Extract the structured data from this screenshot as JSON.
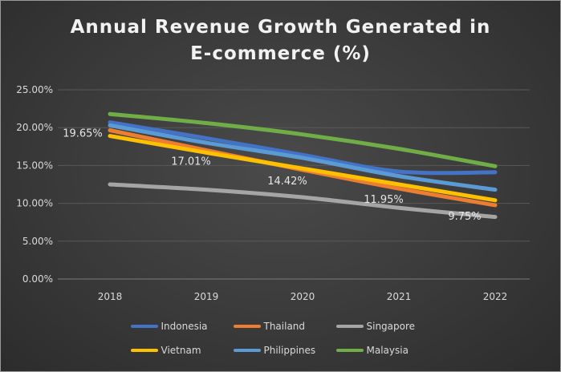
{
  "chart_data": {
    "type": "line",
    "title": "Annual Revenue Growth Generated in E-commerce (%)",
    "title_lines": [
      "Annual Revenue Growth Generated in",
      "E-commerce (%)"
    ],
    "categories": [
      "2018",
      "2019",
      "2020",
      "2021",
      "2022"
    ],
    "ylim": [
      0,
      25
    ],
    "yticks": [
      "0.00%",
      "5.00%",
      "10.00%",
      "15.00%",
      "20.00%",
      "25.00%"
    ],
    "grid": true,
    "legend_position": "bottom",
    "series": [
      {
        "name": "Indonesia",
        "color": "#4472c4",
        "values": [
          20.7,
          18.6,
          16.4,
          14.2,
          14.1
        ]
      },
      {
        "name": "Thailand",
        "color": "#ed7d31",
        "values": [
          19.65,
          17.01,
          14.42,
          11.95,
          9.75
        ]
      },
      {
        "name": "Singapore",
        "color": "#a5a5a5",
        "values": [
          12.5,
          11.8,
          10.8,
          9.4,
          8.2
        ]
      },
      {
        "name": "Vietnam",
        "color": "#ffc000",
        "values": [
          18.9,
          16.7,
          14.6,
          12.5,
          10.4
        ]
      },
      {
        "name": "Philippines",
        "color": "#5b9bd5",
        "values": [
          20.3,
          18.0,
          16.0,
          13.6,
          11.8
        ]
      },
      {
        "name": "Malaysia",
        "color": "#70ad47",
        "values": [
          21.8,
          20.6,
          19.1,
          17.2,
          14.9
        ]
      }
    ],
    "data_labels": {
      "series": "Thailand",
      "labels": [
        "19.65%",
        "17.01%",
        "14.42%",
        "11.95%",
        "9.75%"
      ]
    }
  },
  "legend": {
    "rows": [
      [
        {
          "name": "Indonesia",
          "color": "#4472c4"
        },
        {
          "name": "Thailand",
          "color": "#ed7d31"
        },
        {
          "name": "Singapore",
          "color": "#a5a5a5"
        }
      ],
      [
        {
          "name": "Vietnam",
          "color": "#ffc000"
        },
        {
          "name": "Philippines",
          "color": "#5b9bd5"
        },
        {
          "name": "Malaysia",
          "color": "#70ad47"
        }
      ]
    ]
  }
}
